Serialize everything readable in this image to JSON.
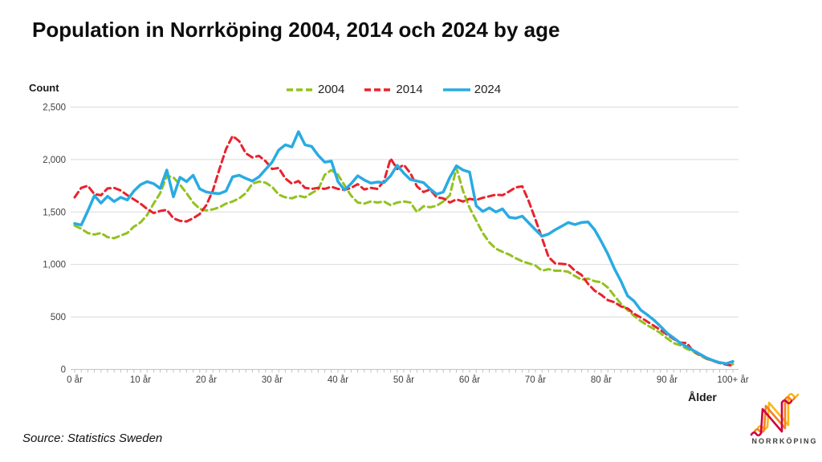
{
  "title": "Population in Norrköping 2004, 2014 och 2024 by age",
  "source_note": "Source: Statistics Sweden",
  "logo": {
    "text": "NORRKÖPING",
    "colors": {
      "crimson": "#d0023f",
      "orange": "#f58220",
      "amber": "#fcb614"
    }
  },
  "chart_data": {
    "type": "line",
    "title": "Population in Norrköping 2004, 2014 och 2024 by age",
    "ylabel": "Count",
    "xlabel": "Ålder",
    "x_unit": "years of age",
    "age_min": 0,
    "age_max": 100,
    "x_ticks": [
      0,
      10,
      20,
      30,
      40,
      50,
      60,
      70,
      80,
      90,
      100
    ],
    "x_tick_labels": [
      "0 år",
      "10 år",
      "20 år",
      "30 år",
      "40 år",
      "50 år",
      "60 år",
      "70 år",
      "80 år",
      "90 år",
      "100+ år"
    ],
    "y_ticks": [
      0,
      500,
      1000,
      1500,
      2000,
      2500
    ],
    "y_tick_labels": [
      "0",
      "500",
      "1,000",
      "1,500",
      "2,000",
      "2,500"
    ],
    "ylim": [
      0,
      2500
    ],
    "grid": "horizontal",
    "legend_position": "top",
    "series": [
      {
        "name": "2004",
        "color": "#94c11f",
        "style": "dashed",
        "values": [
          1370,
          1340,
          1300,
          1285,
          1300,
          1260,
          1250,
          1275,
          1300,
          1360,
          1400,
          1470,
          1580,
          1680,
          1845,
          1830,
          1760,
          1680,
          1590,
          1530,
          1515,
          1525,
          1545,
          1580,
          1600,
          1630,
          1680,
          1770,
          1790,
          1780,
          1740,
          1665,
          1640,
          1630,
          1655,
          1640,
          1680,
          1715,
          1855,
          1900,
          1855,
          1755,
          1655,
          1590,
          1580,
          1600,
          1590,
          1600,
          1565,
          1590,
          1600,
          1590,
          1500,
          1555,
          1545,
          1560,
          1600,
          1660,
          1920,
          1700,
          1540,
          1420,
          1300,
          1210,
          1150,
          1120,
          1095,
          1060,
          1030,
          1010,
          990,
          940,
          955,
          940,
          940,
          930,
          890,
          855,
          865,
          840,
          830,
          780,
          700,
          625,
          565,
          510,
          460,
          420,
          385,
          345,
          295,
          250,
          230,
          195,
          170,
          130,
          100,
          80,
          65,
          55,
          50
        ]
      },
      {
        "name": "2014",
        "color": "#e8222d",
        "style": "dashed",
        "values": [
          1640,
          1730,
          1750,
          1670,
          1660,
          1725,
          1730,
          1705,
          1660,
          1620,
          1580,
          1530,
          1490,
          1510,
          1520,
          1440,
          1415,
          1410,
          1440,
          1480,
          1565,
          1705,
          1910,
          2100,
          2225,
          2175,
          2060,
          2020,
          2035,
          1985,
          1910,
          1920,
          1820,
          1770,
          1795,
          1730,
          1720,
          1730,
          1720,
          1740,
          1720,
          1710,
          1730,
          1765,
          1715,
          1730,
          1720,
          1795,
          2010,
          1910,
          1950,
          1870,
          1745,
          1690,
          1715,
          1640,
          1630,
          1590,
          1620,
          1600,
          1625,
          1615,
          1635,
          1650,
          1665,
          1660,
          1695,
          1735,
          1745,
          1600,
          1430,
          1250,
          1070,
          1010,
          1005,
          1000,
          940,
          900,
          815,
          750,
          710,
          660,
          640,
          600,
          580,
          530,
          495,
          455,
          415,
          375,
          330,
          290,
          255,
          250,
          170,
          140,
          105,
          80,
          60,
          45,
          35
        ]
      },
      {
        "name": "2024",
        "color": "#29abe2",
        "style": "solid",
        "values": [
          1390,
          1375,
          1510,
          1655,
          1585,
          1650,
          1600,
          1640,
          1615,
          1700,
          1760,
          1790,
          1770,
          1725,
          1900,
          1645,
          1830,
          1790,
          1850,
          1720,
          1690,
          1680,
          1675,
          1700,
          1835,
          1850,
          1820,
          1795,
          1835,
          1905,
          1975,
          2090,
          2140,
          2120,
          2265,
          2140,
          2125,
          2040,
          1975,
          1985,
          1790,
          1710,
          1770,
          1845,
          1805,
          1775,
          1785,
          1780,
          1845,
          1945,
          1870,
          1810,
          1795,
          1780,
          1720,
          1670,
          1690,
          1830,
          1940,
          1900,
          1880,
          1560,
          1505,
          1540,
          1500,
          1530,
          1450,
          1440,
          1460,
          1395,
          1330,
          1270,
          1290,
          1330,
          1365,
          1400,
          1380,
          1400,
          1405,
          1330,
          1220,
          1100,
          960,
          840,
          700,
          650,
          565,
          520,
          470,
          410,
          345,
          300,
          250,
          215,
          180,
          145,
          110,
          85,
          65,
          55,
          75
        ]
      }
    ]
  }
}
